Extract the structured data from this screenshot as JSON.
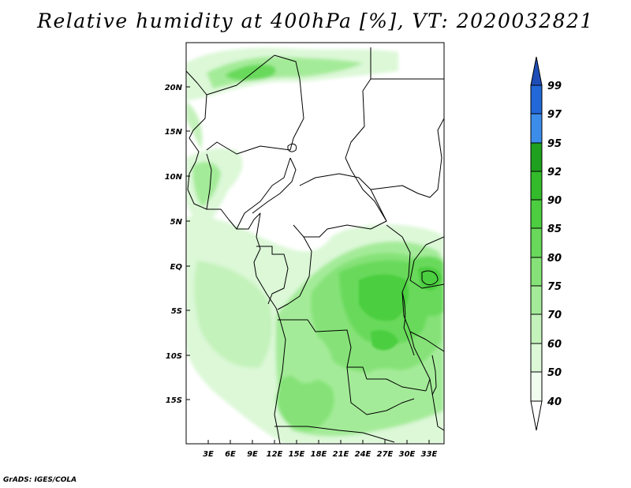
{
  "title": "Relative humidity at 400hPa [%], VT: 2020032821",
  "credit": "GrADS: IGES/COLA",
  "axes": {
    "lat_labels": [
      "20N",
      "15N",
      "10N",
      "5N",
      "EQ",
      "5S",
      "10S",
      "15S"
    ],
    "lon_labels": [
      "3E",
      "6E",
      "9E",
      "12E",
      "15E",
      "18E",
      "21E",
      "24E",
      "27E",
      "30E",
      "33E"
    ]
  },
  "map_data": {
    "variable": "Relative humidity",
    "level": "400hPa",
    "units": "%",
    "valid_time": "2020032821",
    "lon_range": [
      0,
      35
    ],
    "lat_range": [
      -20,
      25
    ],
    "colorbar": {
      "labels": [
        "40",
        "50",
        "60",
        "70",
        "75",
        "80",
        "85",
        "90",
        "92",
        "95",
        "97",
        "99"
      ],
      "colors": [
        "#f0fcee",
        "#dcf8d7",
        "#c4f2bb",
        "#a4eb99",
        "#86e278",
        "#68d95a",
        "#4cce40",
        "#33bb2c",
        "#1fa01f",
        "#10870f",
        "#3c8cea",
        "#2268d8",
        "#1e4db8"
      ]
    }
  }
}
